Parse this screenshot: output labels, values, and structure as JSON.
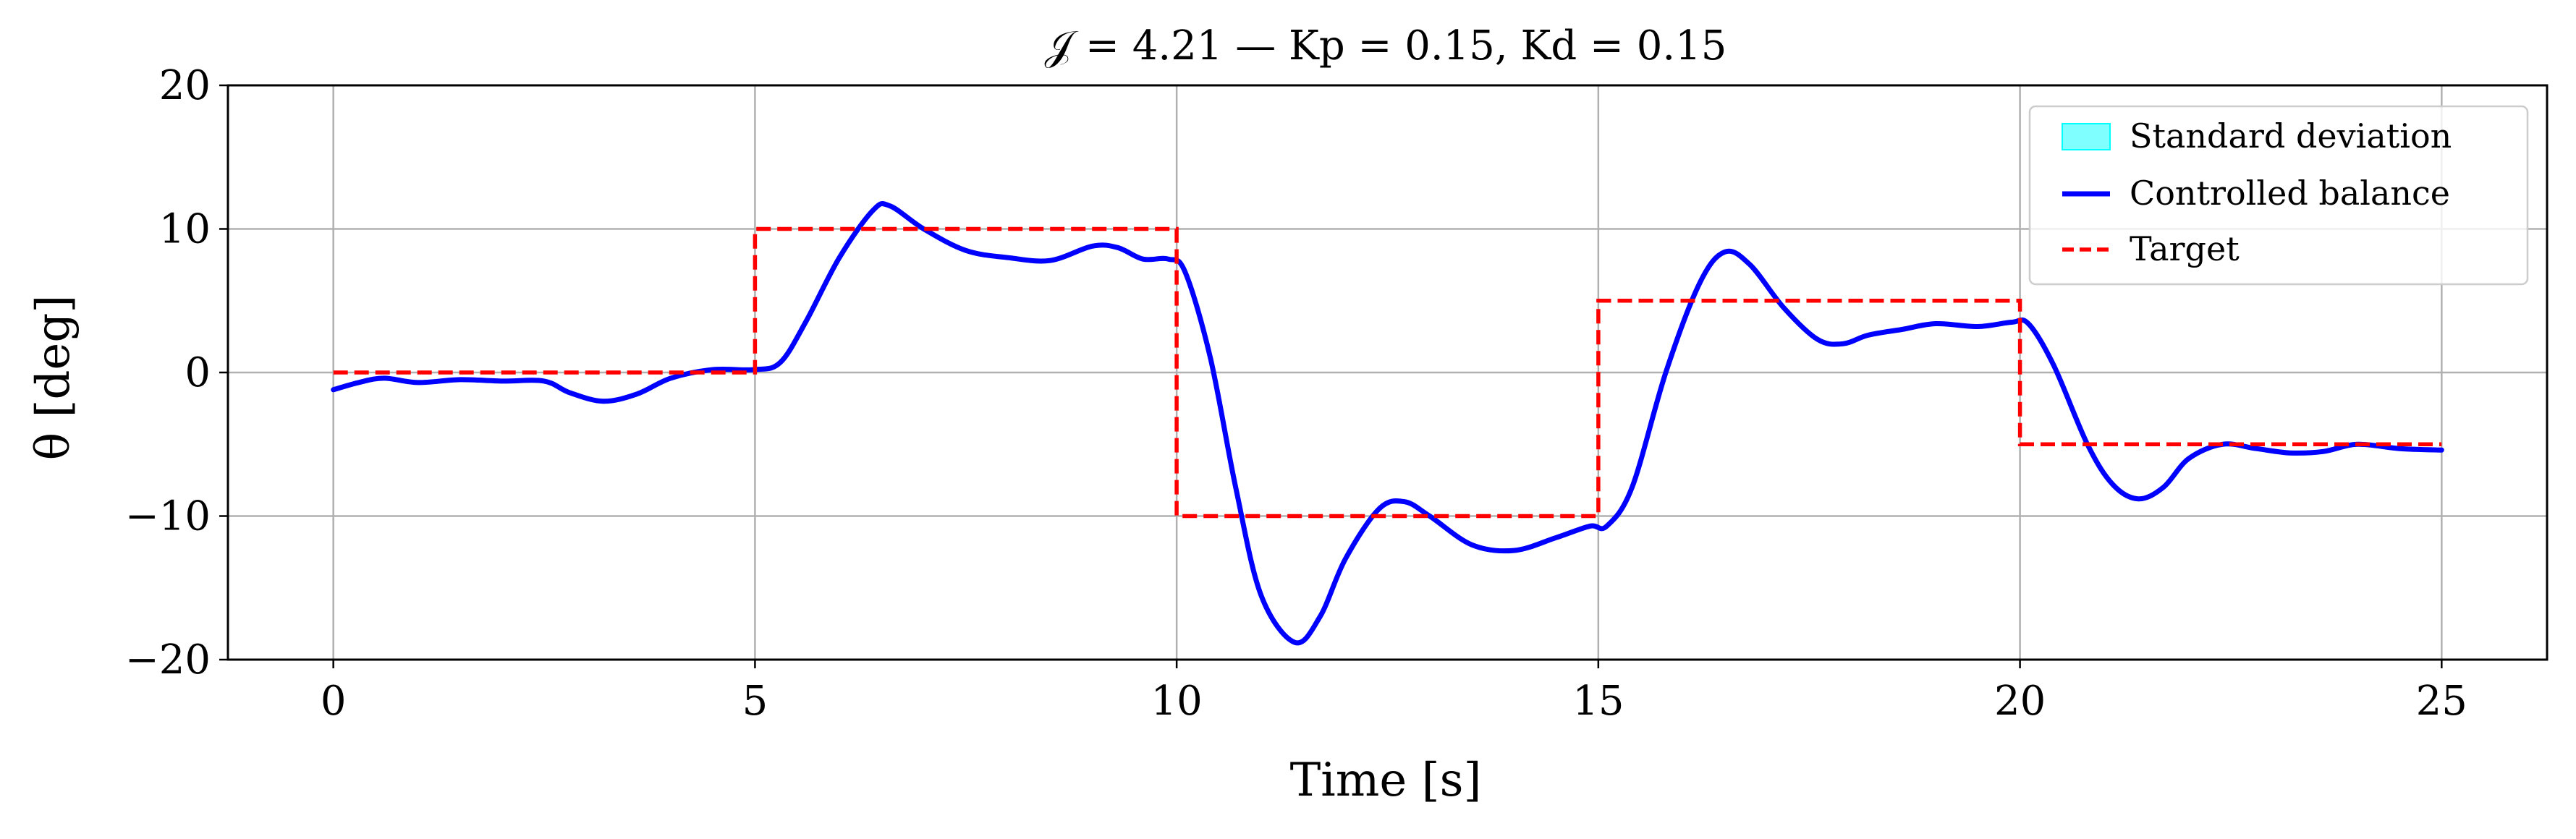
{
  "chart_data": {
    "type": "line",
    "title": "𝒥 = 4.21 — Kp = 0.15, Kd = 0.15",
    "xlabel": "Time [s]",
    "ylabel": "θ [deg]",
    "xlim": [
      -1.25,
      26.25
    ],
    "ylim": [
      -20,
      20
    ],
    "xticks": [
      0,
      5,
      10,
      15,
      20,
      25
    ],
    "yticks": [
      -20,
      -10,
      0,
      10,
      20
    ],
    "xtick_labels": [
      "0",
      "5",
      "10",
      "15",
      "20",
      "25"
    ],
    "ytick_labels": [
      "−20",
      "−10",
      "0",
      "10",
      "20"
    ],
    "grid": true,
    "legend_position": "top-right",
    "colors": {
      "std": "#00ffff",
      "balance": "#0000ff",
      "target": "#ff0000"
    },
    "series": [
      {
        "name": "Standard deviation",
        "kind": "band",
        "color": "#00ffff",
        "x": [],
        "lower": [],
        "upper": []
      },
      {
        "name": "Controlled balance",
        "kind": "line",
        "color": "#0000ff",
        "x": [
          0,
          0.3,
          0.6,
          1.0,
          1.5,
          2.0,
          2.5,
          2.8,
          3.2,
          3.6,
          4.0,
          4.5,
          5.0,
          5.3,
          5.6,
          6.0,
          6.4,
          6.6,
          7.0,
          7.5,
          8.0,
          8.5,
          9.0,
          9.3,
          9.6,
          9.9,
          10.1,
          10.4,
          10.7,
          11.0,
          11.4,
          11.7,
          12.0,
          12.4,
          12.7,
          13.0,
          13.5,
          14.0,
          14.5,
          14.9,
          15.1,
          15.4,
          15.8,
          16.2,
          16.5,
          16.8,
          17.2,
          17.6,
          17.9,
          18.2,
          18.6,
          19.0,
          19.5,
          19.9,
          20.1,
          20.4,
          20.8,
          21.1,
          21.4,
          21.7,
          22.0,
          22.4,
          22.8,
          23.2,
          23.6,
          24.0,
          24.5,
          25.0
        ],
        "values": [
          -1.2,
          -0.7,
          -0.4,
          -0.7,
          -0.5,
          -0.6,
          -0.6,
          -1.4,
          -2.0,
          -1.5,
          -0.4,
          0.2,
          0.2,
          0.7,
          3.5,
          8.0,
          11.3,
          11.6,
          10.0,
          8.5,
          8.0,
          7.8,
          8.8,
          8.7,
          7.9,
          7.9,
          7.0,
          1.0,
          -8.0,
          -15.5,
          -18.8,
          -17.0,
          -13.0,
          -9.5,
          -9.0,
          -10.0,
          -12.0,
          -12.4,
          -11.5,
          -10.7,
          -10.7,
          -8.0,
          0.0,
          6.2,
          8.4,
          7.5,
          4.5,
          2.3,
          2.0,
          2.6,
          3.0,
          3.4,
          3.2,
          3.5,
          3.4,
          0.5,
          -5.0,
          -7.8,
          -8.8,
          -8.0,
          -6.0,
          -5.0,
          -5.3,
          -5.6,
          -5.5,
          -5.0,
          -5.3,
          -5.4
        ]
      },
      {
        "name": "Target",
        "kind": "step",
        "color": "#ff0000",
        "x": [
          0,
          5,
          5,
          10,
          10,
          15,
          15,
          20,
          20,
          25
        ],
        "values": [
          0,
          0,
          10,
          10,
          -10,
          -10,
          5,
          5,
          -5,
          -5
        ]
      }
    ]
  }
}
